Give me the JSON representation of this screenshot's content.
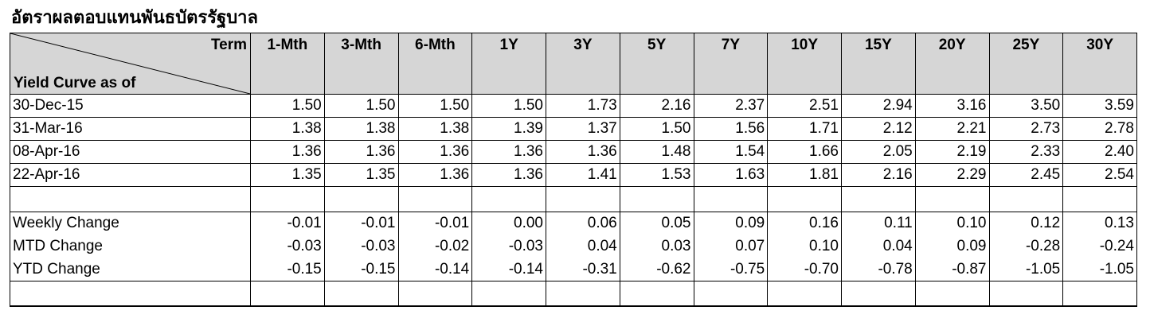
{
  "title": "อัตราผลตอบแทนพันธบัตรรัฐบาล",
  "header": {
    "term_label": "Term",
    "yield_curve_label": "Yield Curve as of",
    "terms": [
      "1-Mth",
      "3-Mth",
      "6-Mth",
      "1Y",
      "3Y",
      "5Y",
      "7Y",
      "10Y",
      "15Y",
      "20Y",
      "25Y",
      "30Y"
    ]
  },
  "rows": [
    {
      "label": "30-Dec-15",
      "values": [
        "1.50",
        "1.50",
        "1.50",
        "1.50",
        "1.73",
        "2.16",
        "2.37",
        "2.51",
        "2.94",
        "3.16",
        "3.50",
        "3.59"
      ]
    },
    {
      "label": "31-Mar-16",
      "values": [
        "1.38",
        "1.38",
        "1.38",
        "1.39",
        "1.37",
        "1.50",
        "1.56",
        "1.71",
        "2.12",
        "2.21",
        "2.73",
        "2.78"
      ]
    },
    {
      "label": "08-Apr-16",
      "values": [
        "1.36",
        "1.36",
        "1.36",
        "1.36",
        "1.36",
        "1.48",
        "1.54",
        "1.66",
        "2.05",
        "2.19",
        "2.33",
        "2.40"
      ]
    },
    {
      "label": "22-Apr-16",
      "values": [
        "1.35",
        "1.35",
        "1.36",
        "1.36",
        "1.41",
        "1.53",
        "1.63",
        "1.81",
        "2.16",
        "2.29",
        "2.45",
        "2.54"
      ]
    }
  ],
  "changes": [
    {
      "label": "Weekly Change",
      "values": [
        "-0.01",
        "-0.01",
        "-0.01",
        "0.00",
        "0.06",
        "0.05",
        "0.09",
        "0.16",
        "0.11",
        "0.10",
        "0.12",
        "0.13"
      ]
    },
    {
      "label": "MTD Change",
      "values": [
        "-0.03",
        "-0.03",
        "-0.02",
        "-0.03",
        "0.04",
        "0.03",
        "0.07",
        "0.10",
        "0.04",
        "0.09",
        "-0.28",
        "-0.24"
      ]
    },
    {
      "label": "YTD Change",
      "values": [
        "-0.15",
        "-0.15",
        "-0.14",
        "-0.14",
        "-0.31",
        "-0.62",
        "-0.75",
        "-0.70",
        "-0.78",
        "-0.87",
        "-1.05",
        "-1.05"
      ]
    }
  ]
}
